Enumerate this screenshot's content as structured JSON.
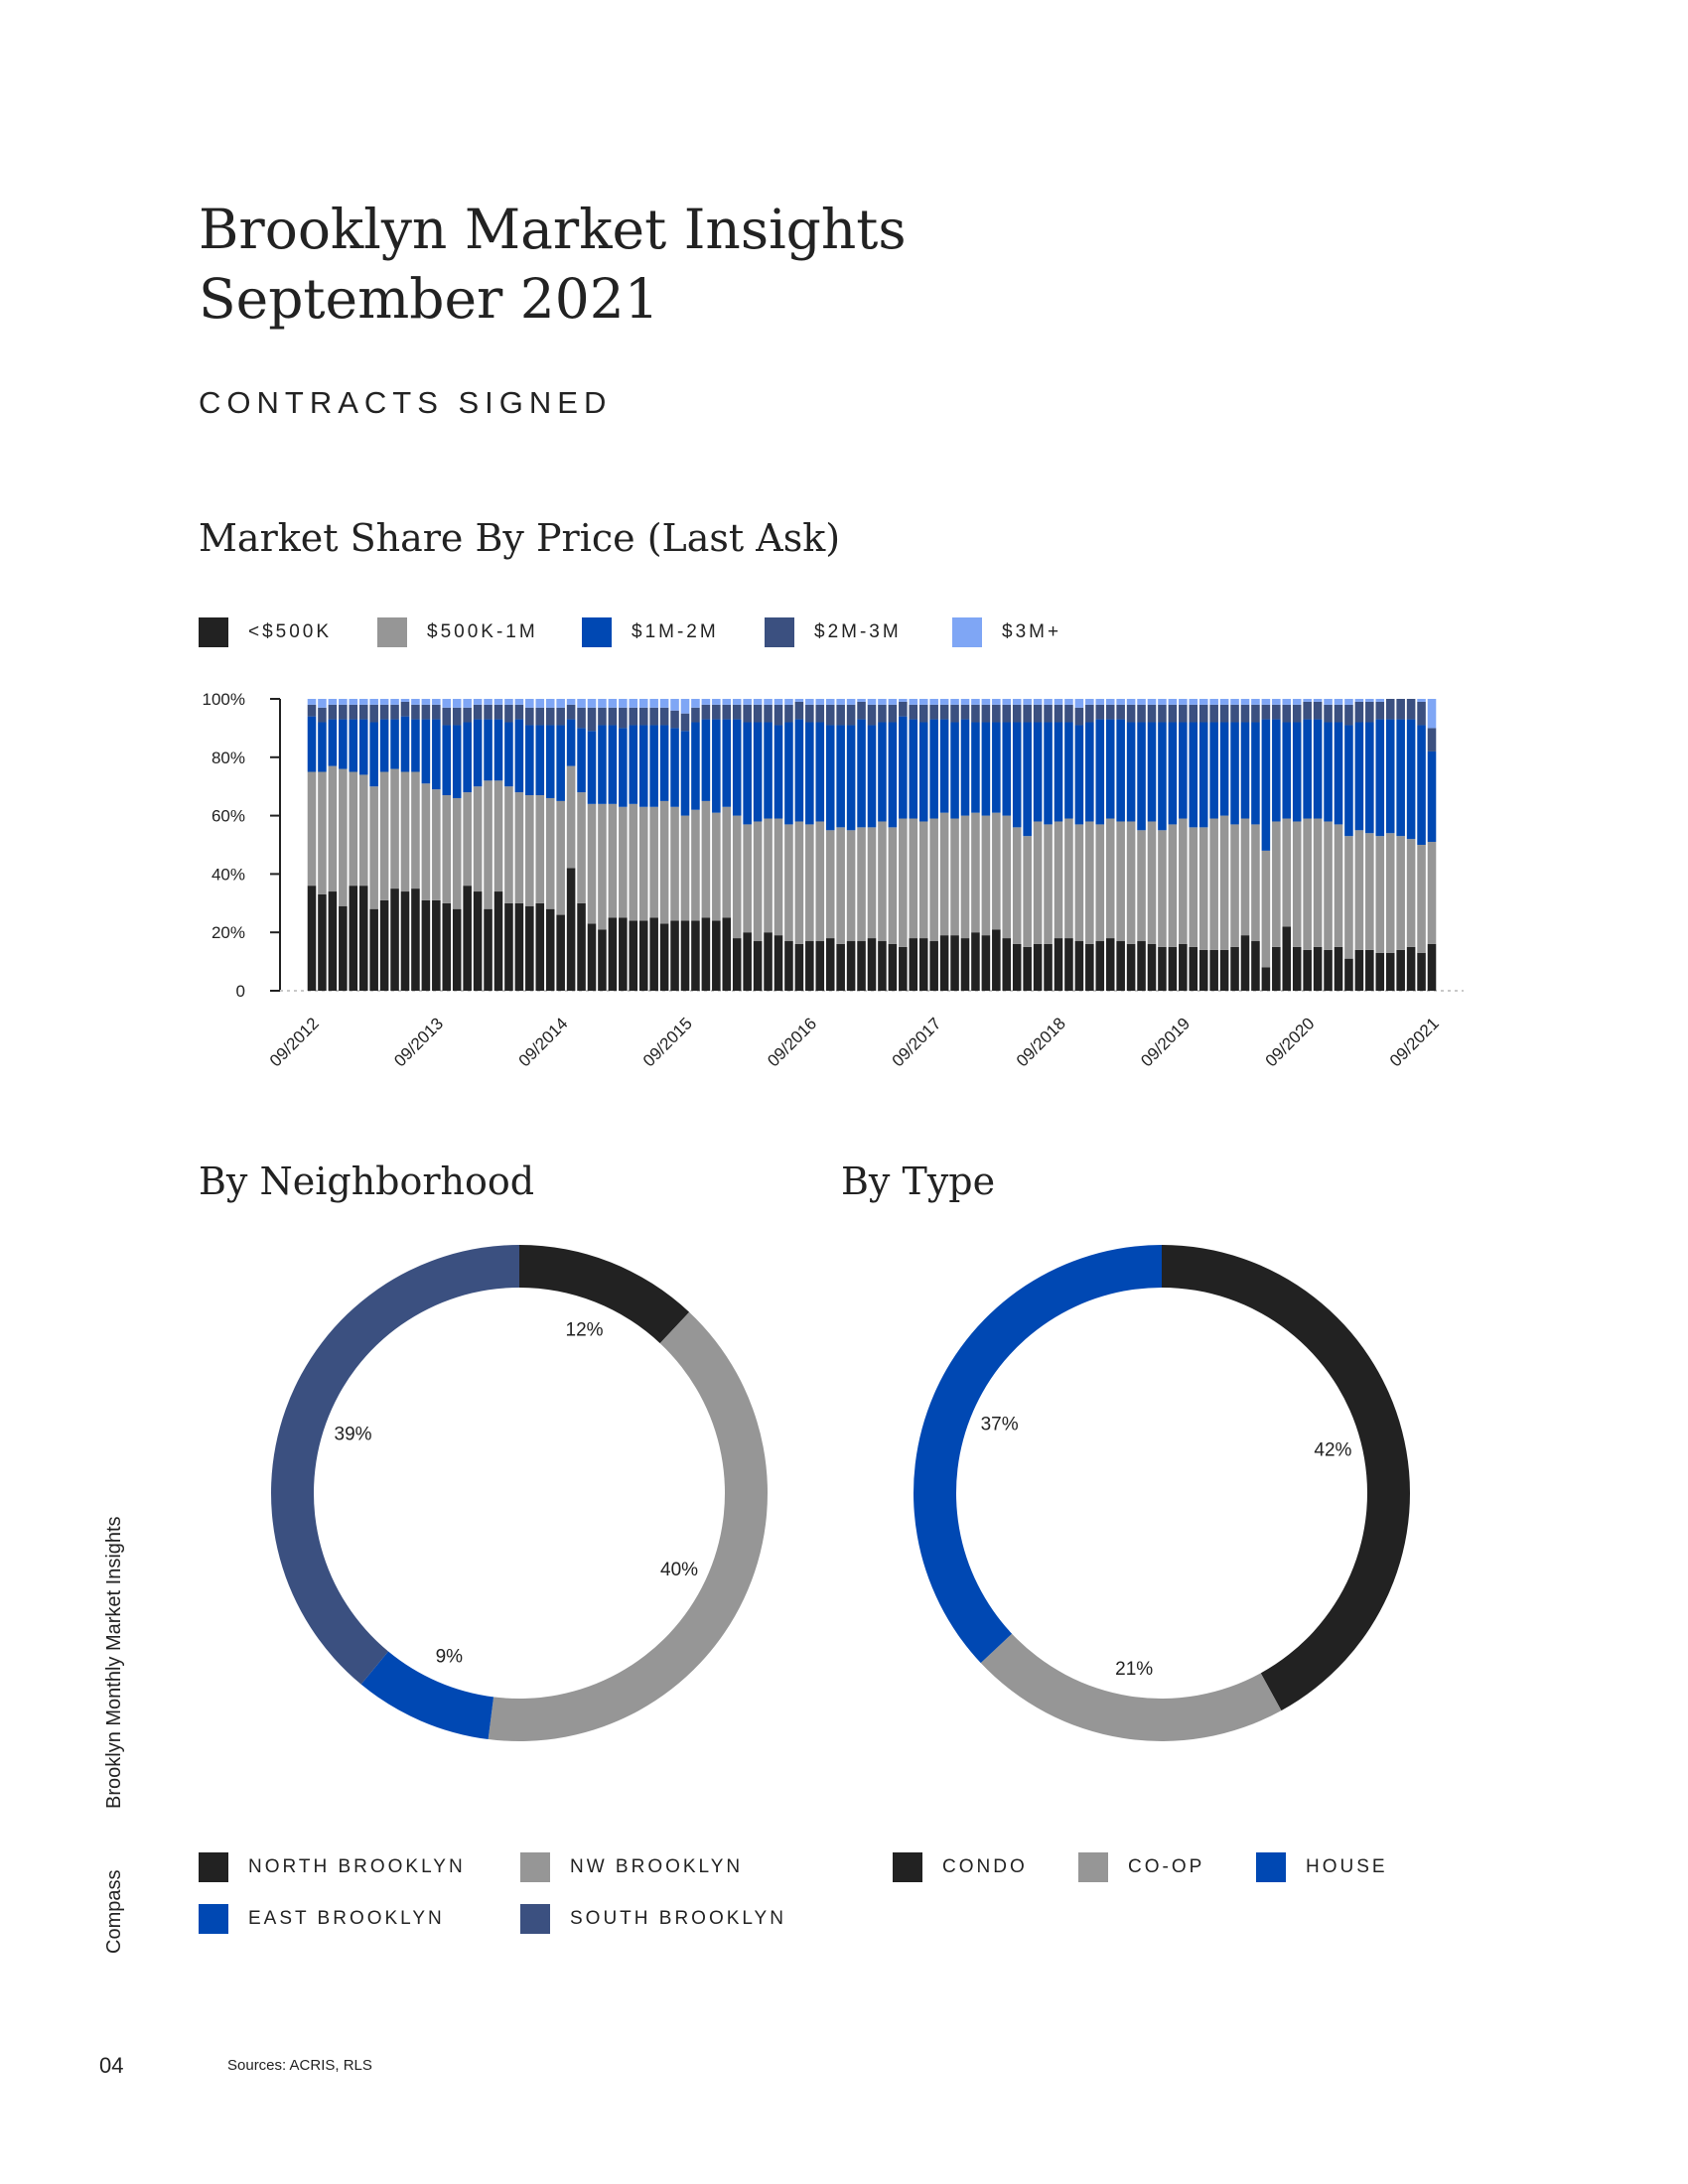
{
  "header": {
    "title_line1": "Brooklyn Market Insights",
    "title_line2": "September 2021",
    "section": "CONTRACTS SIGNED"
  },
  "sidebar": {
    "report_name": "Brooklyn Monthly Market Insights",
    "brand": "Compass"
  },
  "footer": {
    "page_number": "04",
    "sources": "Sources: ACRIS, RLS"
  },
  "colors": {
    "under500k": "#222222",
    "500k_1m": "#969696",
    "1m_2m": "#0048B3",
    "2m_3m": "#3B5080",
    "3m_plus": "#7FA6F5"
  },
  "chart_data": [
    {
      "type": "bar",
      "stacked": true,
      "title": "Market Share By Price (Last Ask)",
      "legend_position": "top",
      "ylim": [
        0,
        100
      ],
      "y_ticks": [
        "0",
        "20%",
        "40%",
        "60%",
        "80%",
        "100%"
      ],
      "x_tick_labels": [
        "09/2012",
        "09/2013",
        "09/2014",
        "09/2015",
        "09/2016",
        "09/2017",
        "09/2018",
        "09/2019",
        "09/2020",
        "09/2021"
      ],
      "bar_count": 109,
      "series": [
        {
          "name": "<$500K",
          "color": "#222222",
          "values": [
            36,
            33,
            34,
            29,
            36,
            36,
            28,
            31,
            35,
            34,
            35,
            31,
            31,
            30,
            28,
            36,
            34,
            28,
            34,
            30,
            30,
            29,
            30,
            28,
            26,
            42,
            30,
            23,
            21,
            25,
            25,
            24,
            24,
            25,
            23,
            24,
            24,
            24,
            25,
            24,
            25,
            18,
            20,
            17,
            20,
            19,
            17,
            16,
            17,
            17,
            18,
            16,
            17,
            17,
            18,
            17,
            16,
            15,
            18,
            18,
            17,
            19,
            19,
            18,
            20,
            19,
            21,
            18,
            16,
            15,
            16,
            16,
            18,
            18,
            17,
            16,
            17,
            18,
            17,
            16,
            17,
            16,
            15,
            15,
            16,
            15,
            14,
            14,
            14,
            15,
            19,
            17,
            8,
            15,
            22,
            15,
            14,
            15,
            14,
            15,
            11,
            14,
            14,
            13,
            13,
            14,
            15,
            13,
            16
          ]
        },
        {
          "name": "$500K-1M",
          "color": "#969696",
          "values": [
            39,
            42,
            43,
            47,
            39,
            38,
            42,
            44,
            41,
            41,
            40,
            40,
            38,
            37,
            38,
            32,
            36,
            44,
            38,
            40,
            38,
            38,
            37,
            38,
            39,
            35,
            38,
            41,
            43,
            39,
            38,
            40,
            39,
            38,
            42,
            39,
            36,
            38,
            40,
            37,
            38,
            42,
            37,
            41,
            39,
            40,
            40,
            42,
            40,
            41,
            37,
            40,
            38,
            39,
            38,
            41,
            40,
            44,
            41,
            40,
            42,
            42,
            40,
            42,
            41,
            41,
            40,
            42,
            40,
            38,
            42,
            41,
            40,
            41,
            40,
            42,
            40,
            41,
            41,
            42,
            38,
            42,
            40,
            42,
            43,
            41,
            42,
            45,
            46,
            42,
            40,
            40,
            40,
            43,
            37,
            43,
            45,
            44,
            44,
            42,
            42,
            41,
            40,
            40,
            41,
            39,
            37,
            37,
            35
          ]
        },
        {
          "name": "$1M-2M",
          "color": "#0048B3",
          "values": [
            19,
            17,
            16,
            17,
            18,
            19,
            22,
            18,
            17,
            19,
            18,
            22,
            24,
            24,
            25,
            24,
            23,
            21,
            21,
            22,
            25,
            24,
            24,
            25,
            26,
            16,
            22,
            25,
            27,
            27,
            27,
            27,
            28,
            28,
            26,
            27,
            29,
            30,
            28,
            32,
            30,
            33,
            35,
            34,
            33,
            32,
            35,
            35,
            35,
            34,
            36,
            35,
            36,
            37,
            35,
            34,
            36,
            35,
            34,
            34,
            34,
            32,
            33,
            33,
            31,
            32,
            31,
            32,
            36,
            39,
            34,
            35,
            34,
            33,
            34,
            34,
            36,
            34,
            35,
            34,
            37,
            34,
            37,
            35,
            33,
            36,
            36,
            33,
            32,
            35,
            33,
            35,
            45,
            35,
            33,
            34,
            34,
            34,
            34,
            35,
            38,
            37,
            38,
            40,
            39,
            40,
            41,
            41,
            31
          ]
        },
        {
          "name": "$2M-3M",
          "color": "#3B5080",
          "values": [
            4,
            5,
            5,
            5,
            5,
            5,
            6,
            5,
            5,
            5,
            5,
            5,
            5,
            6,
            6,
            5,
            5,
            5,
            5,
            6,
            5,
            6,
            6,
            6,
            6,
            5,
            7,
            8,
            6,
            6,
            7,
            6,
            6,
            6,
            6,
            6,
            6,
            5,
            5,
            5,
            5,
            5,
            6,
            6,
            6,
            7,
            6,
            6,
            6,
            6,
            7,
            7,
            7,
            6,
            7,
            6,
            6,
            5,
            5,
            6,
            5,
            5,
            6,
            5,
            6,
            6,
            6,
            6,
            6,
            6,
            6,
            6,
            6,
            6,
            6,
            6,
            5,
            5,
            5,
            6,
            6,
            6,
            6,
            6,
            6,
            6,
            6,
            6,
            6,
            6,
            6,
            6,
            5,
            5,
            6,
            6,
            6,
            6,
            6,
            6,
            7,
            7,
            7,
            6,
            7,
            7,
            7,
            8,
            8
          ]
        },
        {
          "name": "$3M+",
          "color": "#7FA6F5",
          "values": [
            2,
            3,
            2,
            2,
            2,
            2,
            2,
            2,
            2,
            1,
            2,
            2,
            2,
            3,
            3,
            3,
            2,
            2,
            2,
            2,
            2,
            3,
            3,
            3,
            3,
            2,
            3,
            3,
            3,
            3,
            3,
            3,
            3,
            3,
            3,
            4,
            5,
            3,
            2,
            2,
            2,
            2,
            2,
            2,
            2,
            2,
            2,
            1,
            2,
            2,
            2,
            2,
            2,
            1,
            2,
            2,
            2,
            1,
            2,
            2,
            2,
            2,
            2,
            2,
            2,
            2,
            2,
            2,
            2,
            2,
            2,
            2,
            2,
            2,
            3,
            2,
            2,
            2,
            2,
            2,
            2,
            2,
            2,
            2,
            2,
            2,
            2,
            2,
            2,
            2,
            2,
            2,
            2,
            2,
            2,
            2,
            1,
            1,
            2,
            2,
            2,
            1,
            1,
            1,
            0,
            0,
            0,
            1,
            10
          ]
        }
      ]
    },
    {
      "type": "pie",
      "donut": true,
      "title": "By Neighborhood",
      "legend_position": "bottom",
      "slices": [
        {
          "name": "NORTH BROOKLYN",
          "value": 12,
          "label": "12%",
          "color": "#222222"
        },
        {
          "name": "NW BROOKLYN",
          "value": 40,
          "label": "40%",
          "color": "#969696"
        },
        {
          "name": "EAST BROOKLYN",
          "value": 9,
          "label": "9%",
          "color": "#0048B3"
        },
        {
          "name": "SOUTH BROOKLYN",
          "value": 39,
          "label": "39%",
          "color": "#3B5080"
        }
      ]
    },
    {
      "type": "pie",
      "donut": true,
      "title": "By Type",
      "legend_position": "bottom",
      "slices": [
        {
          "name": "CONDO",
          "value": 42,
          "label": "42%",
          "color": "#222222"
        },
        {
          "name": "CO-OP",
          "value": 21,
          "label": "21%",
          "color": "#969696"
        },
        {
          "name": "HOUSE",
          "value": 37,
          "label": "37%",
          "color": "#0048B3"
        }
      ]
    }
  ]
}
